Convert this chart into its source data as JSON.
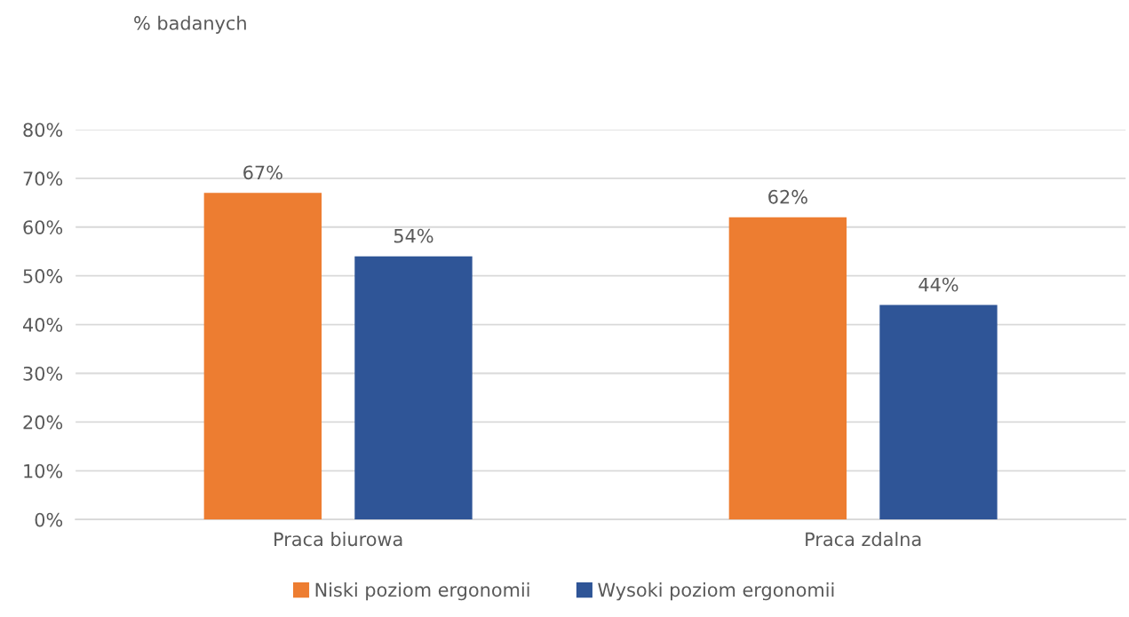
{
  "chart_data": {
    "type": "bar",
    "ylabel": "% badanych",
    "categories": [
      "Praca biurowa",
      "Praca zdalna"
    ],
    "series": [
      {
        "name": "Niski poziom ergonomii",
        "color": "#ed7d31",
        "values": [
          67,
          62
        ],
        "value_labels": [
          "67%",
          "62%"
        ]
      },
      {
        "name": "Wysoki poziom ergonomii",
        "color": "#2f5597",
        "values": [
          54,
          44
        ],
        "value_labels": [
          "54%",
          "44%"
        ]
      }
    ],
    "ylim": [
      0,
      80
    ],
    "yticks": [
      {
        "value": 0,
        "label": "0%"
      },
      {
        "value": 10,
        "label": "10%"
      },
      {
        "value": 20,
        "label": "20%"
      },
      {
        "value": 30,
        "label": "30%"
      },
      {
        "value": 40,
        "label": "40%"
      },
      {
        "value": 50,
        "label": "50%"
      },
      {
        "value": 60,
        "label": "60%"
      },
      {
        "value": 70,
        "label": "70%"
      },
      {
        "value": 80,
        "label": "80%"
      }
    ],
    "grid": "y",
    "legend": "bottom"
  }
}
